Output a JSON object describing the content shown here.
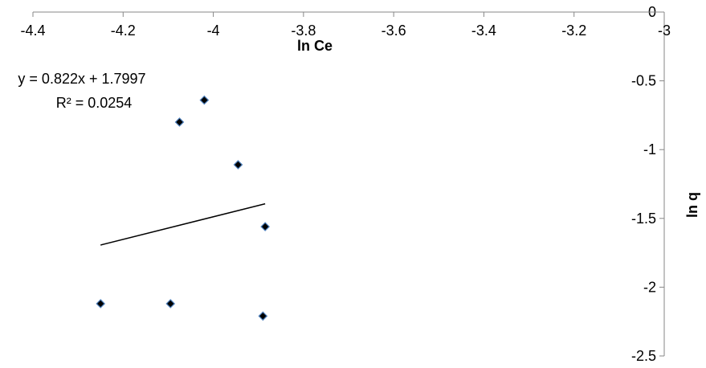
{
  "chart_data": {
    "type": "scatter",
    "title": "",
    "xlabel": "ln Ce",
    "ylabel": "ln q",
    "xlim": [
      -4.4,
      -3.0
    ],
    "ylim": [
      -2.5,
      0.0
    ],
    "x_ticks": [
      -4.4,
      -4.2,
      -4.0,
      -3.8,
      -3.6,
      -3.4,
      -3.2,
      -3.0
    ],
    "x_tick_labels": [
      "-4.4",
      "-4.2",
      "-4",
      "-3.8",
      "-3.6",
      "-3.4",
      "-3.2",
      "-3"
    ],
    "y_ticks": [
      0.0,
      -0.5,
      -1.0,
      -1.5,
      -2.0,
      -2.5
    ],
    "y_tick_labels": [
      "0",
      "-0.5",
      "-1",
      "-1.5",
      "-2",
      "-2.5"
    ],
    "x_axis_position": "top",
    "y_axis_position": "right",
    "grid": false,
    "legend": "none",
    "marker": "diamond",
    "marker_color": "#4f81bd",
    "series": [
      {
        "points": [
          {
            "x": -4.25,
            "y": -2.12
          },
          {
            "x": -4.095,
            "y": -2.12
          },
          {
            "x": -4.075,
            "y": -0.8
          },
          {
            "x": -4.02,
            "y": -0.64
          },
          {
            "x": -3.945,
            "y": -1.11
          },
          {
            "x": -3.885,
            "y": -1.56
          },
          {
            "x": -3.89,
            "y": -2.21
          }
        ]
      }
    ],
    "trendline": {
      "type": "linear",
      "slope": 0.822,
      "intercept": 1.7997,
      "x_range": [
        -4.25,
        -3.885
      ],
      "equation": "y = 0.822x + 1.7997",
      "r_squared": "R² = 0.0254"
    }
  }
}
